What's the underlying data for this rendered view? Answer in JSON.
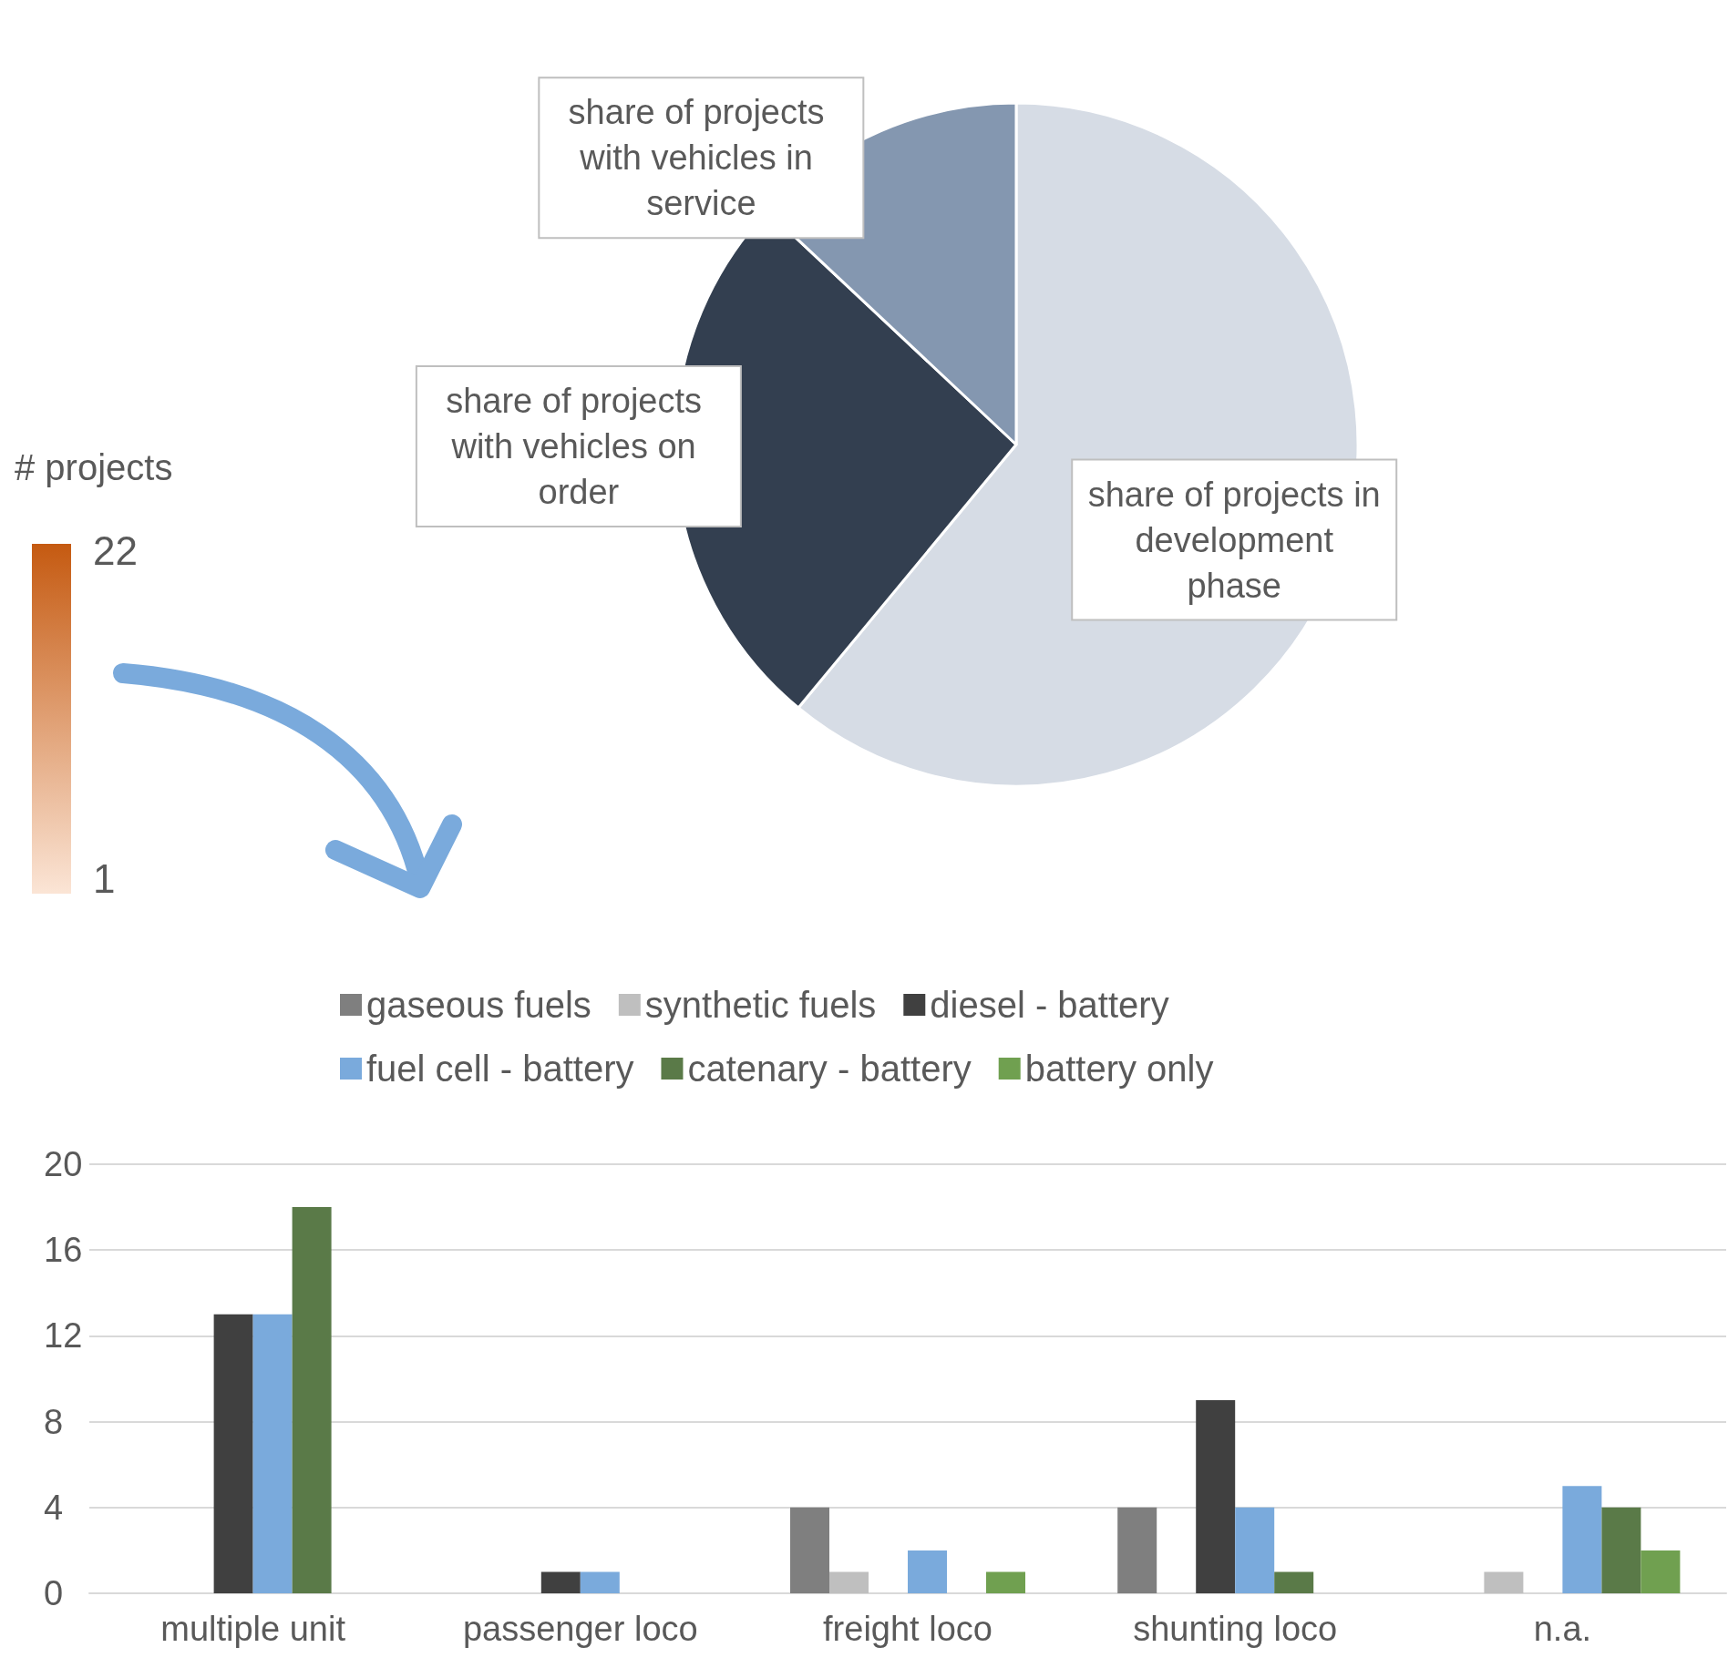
{
  "chart_data": [
    {
      "type": "pie",
      "categories": [
        "share of projects in development phase",
        "share of projects with vehicles on order",
        "share of projects with vehicles in service"
      ],
      "values": [
        61,
        26,
        13
      ],
      "colors": [
        "#d6dce5",
        "#333f50",
        "#8497b0"
      ]
    },
    {
      "type": "other",
      "annotations": [
        "# projects",
        "22",
        "1"
      ]
    },
    {
      "type": "bar",
      "categories": [
        "multiple unit",
        "passenger loco",
        "freight loco",
        "shunting loco",
        "n.a."
      ],
      "series": [
        {
          "name": "gaseous fuels",
          "color": "#7f7f7f",
          "values": [
            0,
            0,
            4,
            4,
            0
          ]
        },
        {
          "name": "synthetic fuels",
          "color": "#bfbfbf",
          "values": [
            0,
            0,
            1,
            0,
            1
          ]
        },
        {
          "name": "diesel - battery",
          "color": "#404040",
          "values": [
            13,
            1,
            0,
            9,
            0
          ]
        },
        {
          "name": "fuel cell - battery",
          "color": "#7aaadc",
          "values": [
            13,
            1,
            2,
            4,
            5
          ]
        },
        {
          "name": "catenary - battery",
          "color": "#5a7a48",
          "values": [
            18,
            0,
            0,
            1,
            4
          ]
        },
        {
          "name": "battery only",
          "color": "#70a050",
          "values": [
            0,
            0,
            1,
            0,
            2
          ]
        }
      ],
      "ylim": [
        0,
        20
      ],
      "yticks": [
        0,
        4,
        8,
        12,
        16,
        20
      ],
      "grid": "y",
      "legend": "top"
    }
  ]
}
